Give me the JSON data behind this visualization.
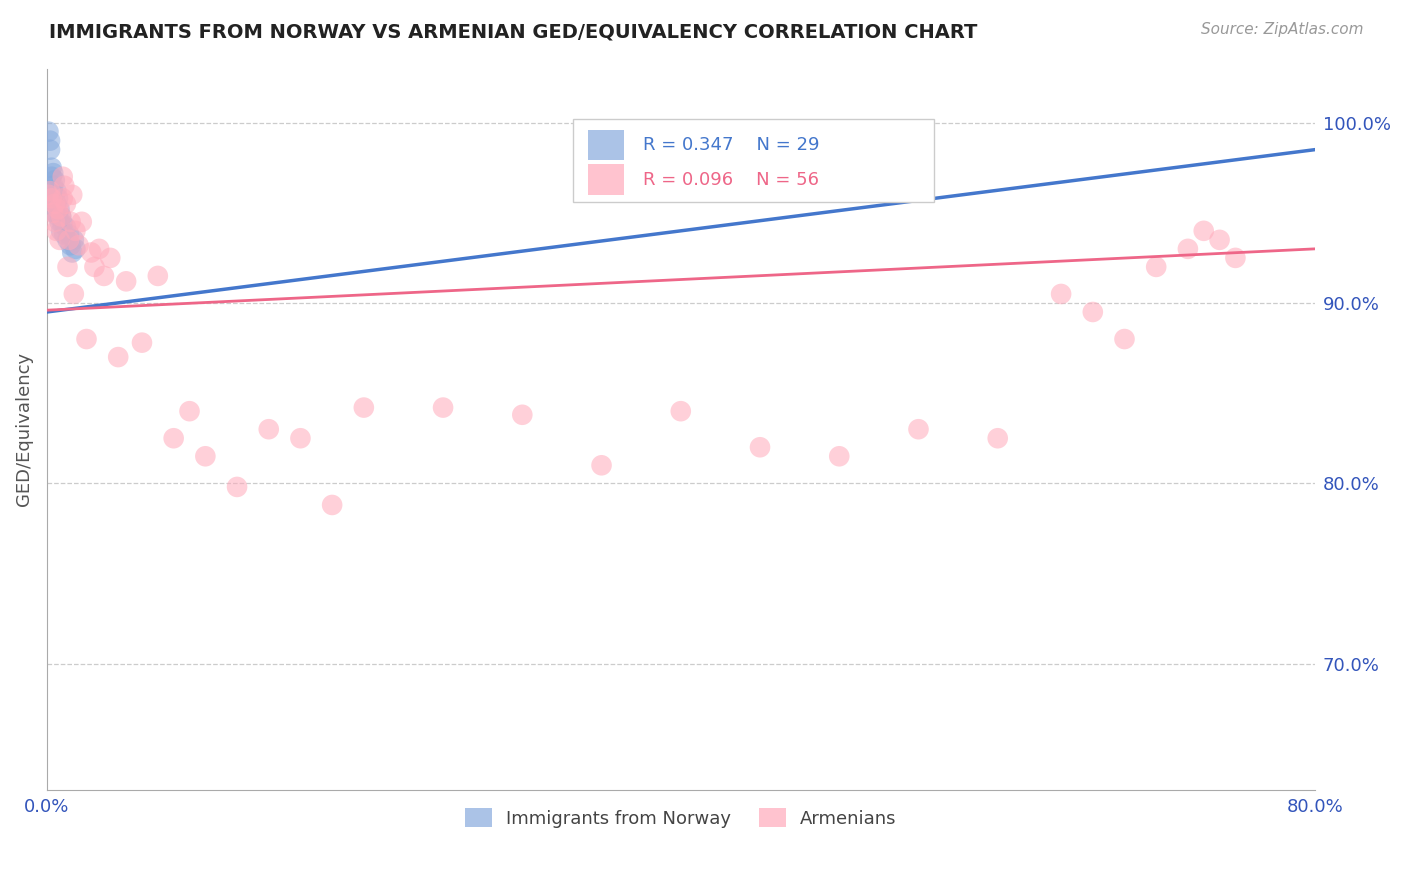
{
  "title": "IMMIGRANTS FROM NORWAY VS ARMENIAN GED/EQUIVALENCY CORRELATION CHART",
  "source": "Source: ZipAtlas.com",
  "ylabel": "GED/Equivalency",
  "xlim": [
    0.0,
    0.8
  ],
  "ylim": [
    0.63,
    1.03
  ],
  "xticks": [
    0.0,
    0.8
  ],
  "xticklabels": [
    "0.0%",
    "80.0%"
  ],
  "yticks_right": [
    0.7,
    0.8,
    0.9,
    1.0
  ],
  "ytick_labels_right": [
    "70.0%",
    "80.0%",
    "90.0%",
    "100.0%"
  ],
  "norway_R": 0.347,
  "norway_N": 29,
  "armenian_R": 0.096,
  "armenian_N": 56,
  "norway_color": "#88AADD",
  "armenian_color": "#FFAABB",
  "norway_line_color": "#4477CC",
  "armenian_line_color": "#EE6688",
  "legend_label_norway": "Immigrants from Norway",
  "legend_label_armenian": "Armenians",
  "norway_x": [
    0.001,
    0.002,
    0.002,
    0.003,
    0.003,
    0.003,
    0.004,
    0.004,
    0.004,
    0.005,
    0.005,
    0.005,
    0.006,
    0.006,
    0.007,
    0.007,
    0.008,
    0.008,
    0.009,
    0.009,
    0.01,
    0.011,
    0.012,
    0.013,
    0.014,
    0.015,
    0.016,
    0.017,
    0.018
  ],
  "norway_y": [
    0.995,
    0.99,
    0.985,
    0.975,
    0.97,
    0.96,
    0.972,
    0.965,
    0.958,
    0.968,
    0.96,
    0.95,
    0.962,
    0.955,
    0.958,
    0.948,
    0.952,
    0.945,
    0.948,
    0.94,
    0.944,
    0.938,
    0.942,
    0.935,
    0.938,
    0.932,
    0.928,
    0.935,
    0.93
  ],
  "armenian_x": [
    0.001,
    0.002,
    0.003,
    0.004,
    0.005,
    0.005,
    0.006,
    0.007,
    0.008,
    0.009,
    0.01,
    0.01,
    0.011,
    0.012,
    0.013,
    0.014,
    0.015,
    0.016,
    0.017,
    0.018,
    0.02,
    0.022,
    0.025,
    0.028,
    0.03,
    0.033,
    0.036,
    0.04,
    0.045,
    0.05,
    0.06,
    0.07,
    0.08,
    0.09,
    0.1,
    0.12,
    0.14,
    0.16,
    0.18,
    0.2,
    0.25,
    0.3,
    0.35,
    0.4,
    0.45,
    0.5,
    0.55,
    0.6,
    0.64,
    0.66,
    0.68,
    0.7,
    0.72,
    0.73,
    0.74,
    0.75
  ],
  "armenian_y": [
    0.96,
    0.962,
    0.958,
    0.95,
    0.945,
    0.955,
    0.94,
    0.952,
    0.935,
    0.948,
    0.97,
    0.958,
    0.965,
    0.955,
    0.92,
    0.935,
    0.945,
    0.96,
    0.905,
    0.94,
    0.932,
    0.945,
    0.88,
    0.928,
    0.92,
    0.93,
    0.915,
    0.925,
    0.87,
    0.912,
    0.878,
    0.915,
    0.825,
    0.84,
    0.815,
    0.798,
    0.83,
    0.825,
    0.788,
    0.842,
    0.842,
    0.838,
    0.81,
    0.84,
    0.82,
    0.815,
    0.83,
    0.825,
    0.905,
    0.895,
    0.88,
    0.92,
    0.93,
    0.94,
    0.935,
    0.925
  ],
  "norway_trendline_x": [
    0.0,
    0.8
  ],
  "norway_trendline_y": [
    0.895,
    0.985
  ],
  "armenian_trendline_x": [
    0.0,
    0.8
  ],
  "armenian_trendline_y": [
    0.896,
    0.93
  ]
}
